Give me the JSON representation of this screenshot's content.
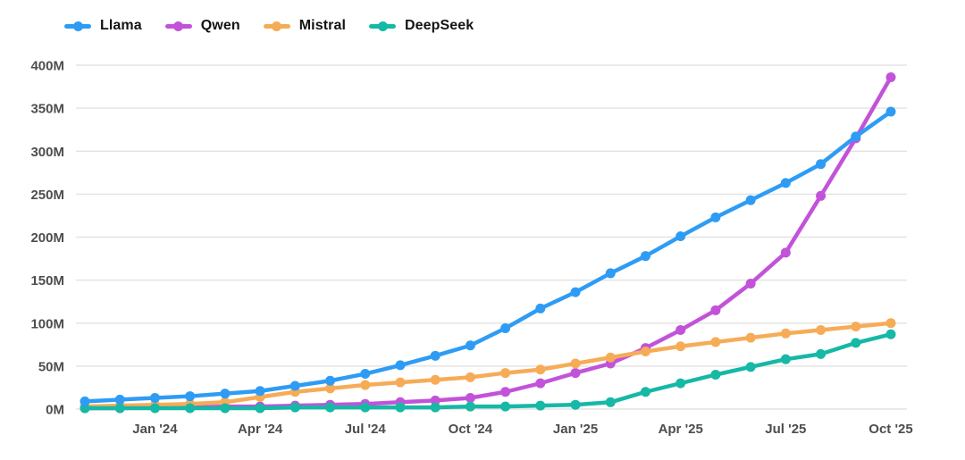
{
  "chart_data": {
    "type": "line",
    "title": "",
    "unit": "M (millions)",
    "x": [
      "Nov '23",
      "Dec '23",
      "Jan '24",
      "Feb '24",
      "Mar '24",
      "Apr '24",
      "May '24",
      "Jun '24",
      "Jul '24",
      "Aug '24",
      "Sep '24",
      "Oct '24",
      "Nov '24",
      "Dec '24",
      "Jan '25",
      "Feb '25",
      "Mar '25",
      "Apr '25",
      "May '25",
      "Jun '25",
      "Jul '25",
      "Aug '25",
      "Sep '25",
      "Oct '25"
    ],
    "x_tick_labels": [
      "Jan '24",
      "Apr '24",
      "Jul '24",
      "Oct '24",
      "Jan '25",
      "Apr '25",
      "Jul '25",
      "Oct '25"
    ],
    "y_tick_labels": [
      "0M",
      "50M",
      "100M",
      "150M",
      "200M",
      "250M",
      "300M",
      "350M",
      "400M"
    ],
    "ylim": [
      0,
      400
    ],
    "y_tick_step": 50,
    "grid": "horizontal",
    "legend_position": "top-left",
    "series": [
      {
        "name": "Llama",
        "color": "#2E9CF4",
        "values": [
          9,
          11,
          13,
          15,
          18,
          21,
          27,
          33,
          41,
          51,
          62,
          74,
          94,
          117,
          136,
          158,
          178,
          201,
          223,
          243,
          263,
          285,
          317,
          346
        ]
      },
      {
        "name": "Qwen",
        "color": "#C253D9",
        "values": [
          1,
          1,
          2,
          2,
          3,
          3,
          4,
          5,
          6,
          8,
          10,
          13,
          20,
          30,
          42,
          53,
          71,
          92,
          115,
          146,
          182,
          248,
          315,
          386
        ]
      },
      {
        "name": "Mistral",
        "color": "#F6AC57",
        "values": [
          3,
          4,
          5,
          6,
          8,
          14,
          20,
          24,
          28,
          31,
          34,
          37,
          42,
          46,
          53,
          60,
          67,
          73,
          78,
          83,
          88,
          92,
          96,
          100
        ]
      },
      {
        "name": "DeepSeek",
        "color": "#16B8A6",
        "values": [
          1,
          1,
          1,
          1,
          1,
          1,
          2,
          2,
          2,
          2,
          2,
          3,
          3,
          4,
          5,
          8,
          20,
          30,
          40,
          49,
          58,
          64,
          77,
          87
        ]
      }
    ]
  },
  "colors": {
    "background": "#FFFFFF",
    "grid": "#E4E4E4",
    "axis_text": "#4D4D4D",
    "legend_text": "#141414"
  }
}
